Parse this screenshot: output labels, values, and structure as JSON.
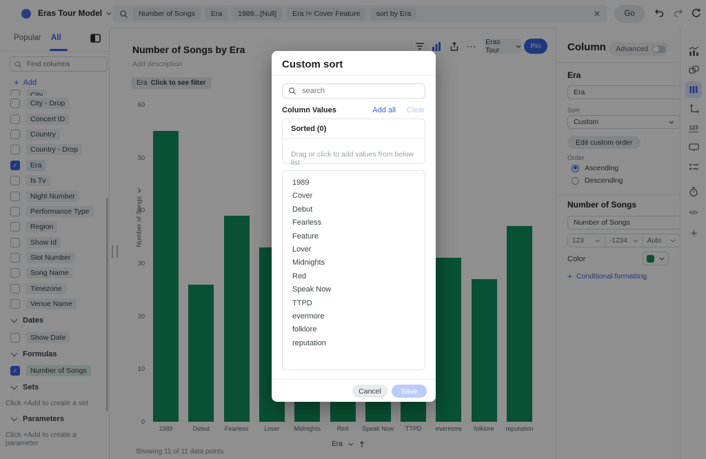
{
  "topbar": {
    "model_name": "Eras Tour Model",
    "formula_tokens": [
      "Number of Songs",
      "Era",
      "1989...[Null]",
      "Era != Cover Feature",
      "sort by Era"
    ],
    "go_label": "Go"
  },
  "sidebar": {
    "tabs": [
      "Popular",
      "All"
    ],
    "active_tab": "All",
    "search_placeholder": "Find columns",
    "add_label": "Add",
    "clipped_row_label": "City",
    "rows": [
      {
        "label": "City - Drop",
        "checked": false
      },
      {
        "label": "Concert ID",
        "checked": false
      },
      {
        "label": "Country",
        "checked": false
      },
      {
        "label": "Country - Drop",
        "checked": false
      },
      {
        "label": "Era",
        "checked": true,
        "tint": "blue"
      },
      {
        "label": "Is Tv",
        "checked": false
      },
      {
        "label": "Night Number",
        "checked": false
      },
      {
        "label": "Performance Type",
        "checked": false
      },
      {
        "label": "Region",
        "checked": false
      },
      {
        "label": "Show Id",
        "checked": false
      },
      {
        "label": "Slot Number",
        "checked": false
      },
      {
        "label": "Song Name",
        "checked": false
      },
      {
        "label": "Timezone",
        "checked": false
      },
      {
        "label": "Venue Name",
        "checked": false
      }
    ],
    "groups": [
      {
        "header": "Dates",
        "rows": [
          {
            "label": "Show Date",
            "checked": false
          }
        ],
        "hint": null
      },
      {
        "header": "Formulas",
        "rows": [
          {
            "label": "Number of Songs",
            "checked": true,
            "tint": "green"
          }
        ],
        "hint": null
      },
      {
        "header": "Sets",
        "rows": [],
        "hint": "Click +Add to create a set"
      },
      {
        "header": "Parameters",
        "rows": [],
        "hint": "Click +Add to create a parameter"
      }
    ]
  },
  "main": {
    "title": "Number of Songs by Era",
    "description_placeholder": "Add description",
    "filter_chip": {
      "column": "Era",
      "text": "Click to see filter"
    },
    "toolbar": {
      "element_dropdown": "Eras Tour",
      "pin_label": "Pin"
    },
    "footer": {
      "x_axis_control": "Era",
      "points_info": "Showing 11 of 11 data points"
    }
  },
  "chart_data": {
    "type": "bar",
    "title": "Number of Songs by Era",
    "xlabel": "Era",
    "ylabel": "Number of Songs",
    "categories": [
      "1989",
      "Debut",
      "Fearless",
      "Lover",
      "Midnights",
      "Red",
      "Speak Now",
      "TTPD",
      "evermore",
      "folklore",
      "reputation"
    ],
    "values": [
      55,
      26,
      39,
      33,
      28,
      30,
      27,
      29,
      31,
      27,
      37
    ],
    "hidden_by_modal": [
      "Midnights",
      "Red",
      "Speak Now",
      "TTPD"
    ],
    "ylim": [
      0,
      60
    ],
    "yticks": [
      0,
      10,
      20,
      30,
      40,
      50,
      60
    ],
    "bar_color": "#108f5e",
    "grid": false,
    "legend": false
  },
  "modal": {
    "title": "Custom sort",
    "search_placeholder": "search",
    "column_values_label": "Column Values",
    "add_all_label": "Add all",
    "clear_label": "Clear",
    "sorted_header": "Sorted (0)",
    "drop_hint": "Drag or click to add values from below list",
    "values": [
      "1989",
      "Cover",
      "Debut",
      "Fearless",
      "Feature",
      "Lover",
      "Midnights",
      "Red",
      "Speak Now",
      "TTPD",
      "evermore",
      "folklore",
      "reputation"
    ],
    "cancel_label": "Cancel",
    "save_label": "Save"
  },
  "panel": {
    "title": "Column",
    "advanced_label": "Advanced",
    "era_section": {
      "heading": "Era",
      "name_value": "Era",
      "sort_label": "Sort",
      "sort_value": "Custom",
      "edit_button": "Edit custom order",
      "order_label": "Order",
      "order_options": [
        "Ascending",
        "Descending"
      ],
      "order_selected": "Ascending"
    },
    "songs_section": {
      "heading": "Number of Songs",
      "name_value": "Number of Songs",
      "format_segments": [
        "123",
        "-1234",
        "Auto"
      ],
      "color_label": "Color",
      "color_value": "#108f5e",
      "conditional_link": "Conditional formatting"
    }
  },
  "right_rail_icons": [
    "combo-chart",
    "new-element",
    "columns",
    "axes",
    "number-format",
    "display",
    "properties",
    "refresh-schedule",
    "code",
    "ai-spark"
  ],
  "colors": {
    "accent_blue": "#3b63e0",
    "bar_green": "#108f5e",
    "save_disabled": "#b9cdf8"
  }
}
